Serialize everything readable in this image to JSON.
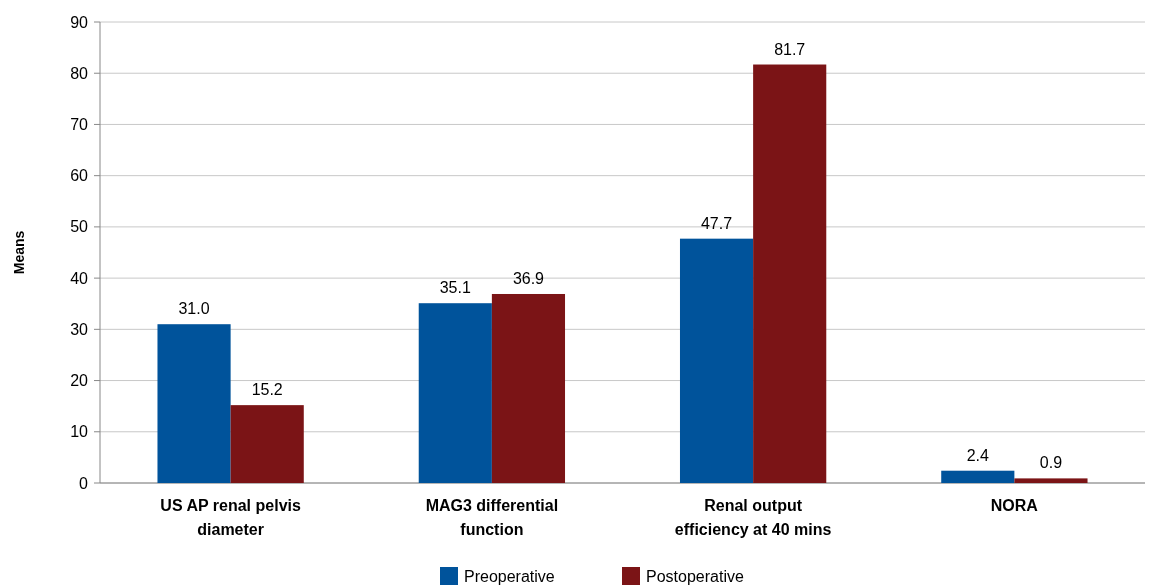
{
  "chart_data": {
    "type": "bar",
    "ylabel": "Means",
    "categories": [
      "US AP renal pelvis diameter",
      "MAG3 differential function",
      "Renal output efficiency at 40 mins",
      "NORA"
    ],
    "series": [
      {
        "name": "Preoperative",
        "color": "#00539b",
        "values": [
          31.0,
          35.1,
          47.7,
          2.4
        ],
        "value_labels": [
          "31.0",
          "35.1",
          "47.7",
          "2.4"
        ]
      },
      {
        "name": "Postoperative",
        "color": "#7b1416",
        "values": [
          15.2,
          36.9,
          81.7,
          0.9
        ],
        "value_labels": [
          "15.2",
          "36.9",
          "81.7",
          "0.9"
        ]
      }
    ],
    "ylim": [
      0,
      90
    ],
    "yticks": [
      0,
      10,
      20,
      30,
      40,
      50,
      60,
      70,
      80,
      90
    ],
    "grid": "y",
    "legend": "bottom"
  }
}
